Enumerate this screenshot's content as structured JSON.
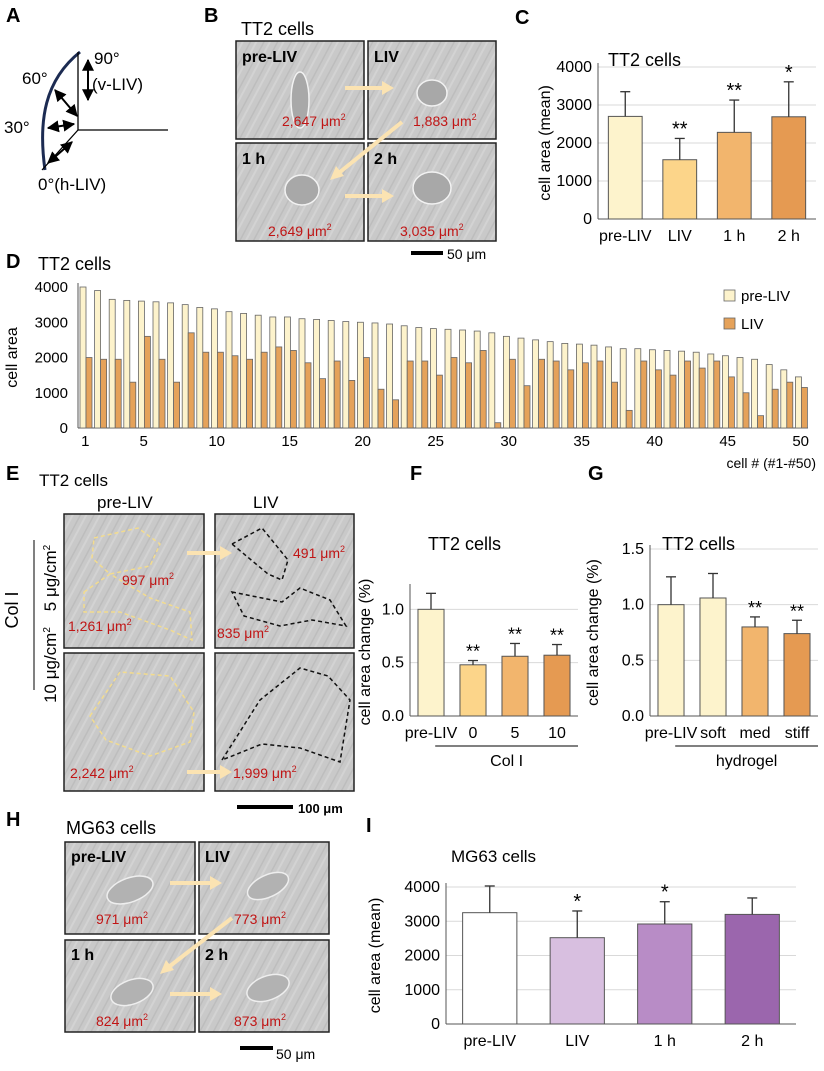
{
  "panel_letters": {
    "A": "A",
    "B": "B",
    "C": "C",
    "D": "D",
    "E": "E",
    "F": "F",
    "G": "G",
    "H": "H",
    "I": "I"
  },
  "panel_a": {
    "angle_90": "90°",
    "angle_vliv": "(v-LIV)",
    "angle_60": "60°",
    "angle_30": "30°",
    "angle_0": "0°(h-LIV)"
  },
  "panel_b": {
    "title": "TT2 cells",
    "scale": "50 μm",
    "tiles": [
      {
        "label": "pre-LIV",
        "area": "2,647 μm",
        "sup": "2"
      },
      {
        "label": "LIV",
        "area": "1,883 μm",
        "sup": "2"
      },
      {
        "label": "1 h",
        "area": "2,649 μm",
        "sup": "2"
      },
      {
        "label": "2 h",
        "area": "3,035 μm",
        "sup": "2"
      }
    ]
  },
  "panel_e": {
    "title": "TT2 cells",
    "col_pre": "pre-LIV",
    "col_liv": "LIV",
    "side": "Col I",
    "row1": "5 μg/cm",
    "row1_sup": "2",
    "row2": "10 μg/cm",
    "row2_sup": "2",
    "scale": "100 μm",
    "areas": [
      {
        "v": "997 μm",
        "s": "2"
      },
      {
        "v": "1,261 μm",
        "s": "2"
      },
      {
        "v": "491 μm",
        "s": "2"
      },
      {
        "v": "835 μm",
        "s": "2"
      },
      {
        "v": "2,242 μm",
        "s": "2"
      },
      {
        "v": "1,999 μm",
        "s": "2"
      }
    ]
  },
  "panel_h": {
    "title": "MG63 cells",
    "scale": "50 μm",
    "tiles": [
      {
        "label": "pre-LIV",
        "area": "971 μm",
        "sup": "2"
      },
      {
        "label": "LIV",
        "area": "773 μm",
        "sup": "2"
      },
      {
        "label": "1 h",
        "area": "824 μm",
        "sup": "2"
      },
      {
        "label": "2 h",
        "area": "873 μm",
        "sup": "2"
      }
    ]
  },
  "colors": {
    "pre": "#fdf3cc",
    "liv_d": "#e5a25a",
    "c1": "#fcd58a",
    "c2": "#f2b56d",
    "c3": "#e59a52",
    "i1": "#ffffff",
    "i2": "#d8bfe0",
    "i3": "#b88cc6",
    "i4": "#9b66ad",
    "red": "#c01515",
    "arrow": "#fbe3b2"
  },
  "chart_data": [
    {
      "id": "C",
      "type": "bar",
      "title": "TT2 cells",
      "xlabel": "",
      "ylabel": "cell area (mean)",
      "categories": [
        "pre-LIV",
        "LIV",
        "1 h",
        "2 h"
      ],
      "values": [
        2700,
        1560,
        2280,
        2690
      ],
      "errors": [
        650,
        560,
        850,
        920
      ],
      "significance": [
        "",
        "**",
        "**",
        "*"
      ],
      "ylim": [
        0,
        4000
      ],
      "yticks": [
        "0",
        "1000",
        "2000",
        "3000",
        "4000"
      ]
    },
    {
      "id": "D",
      "type": "bar",
      "title": "TT2 cells",
      "xlabel": "cell # (#1-#50)",
      "ylabel": "cell area",
      "ylim": [
        0,
        4000
      ],
      "yticks": [
        "0",
        "1000",
        "2000",
        "3000",
        "4000"
      ],
      "xticks": [
        "1",
        "5",
        "10",
        "15",
        "20",
        "25",
        "30",
        "35",
        "40",
        "45",
        "50"
      ],
      "legend": [
        "pre-LIV",
        "LIV"
      ],
      "legend_position": "top-right",
      "series": [
        {
          "name": "pre-LIV",
          "values": [
            4000,
            3900,
            3650,
            3620,
            3600,
            3580,
            3550,
            3500,
            3420,
            3380,
            3300,
            3250,
            3200,
            3150,
            3150,
            3100,
            3080,
            3050,
            3020,
            3000,
            2980,
            2950,
            2900,
            2850,
            2820,
            2800,
            2780,
            2750,
            2700,
            2600,
            2550,
            2500,
            2450,
            2400,
            2380,
            2350,
            2300,
            2250,
            2250,
            2220,
            2200,
            2180,
            2150,
            2100,
            2050,
            2000,
            1950,
            1800,
            1650,
            1450
          ]
        },
        {
          "name": "LIV",
          "values": [
            2000,
            1950,
            1950,
            1300,
            2600,
            1950,
            1300,
            2700,
            2150,
            2150,
            2050,
            1950,
            2150,
            2300,
            2200,
            1850,
            1400,
            1900,
            1350,
            2000,
            1100,
            800,
            1900,
            1900,
            1500,
            2000,
            1850,
            2200,
            150,
            1950,
            1200,
            1950,
            1900,
            1650,
            1850,
            1900,
            1300,
            500,
            1900,
            1650,
            1500,
            1900,
            1700,
            1900,
            1450,
            1000,
            350,
            1100,
            1300,
            1150
          ]
        }
      ]
    },
    {
      "id": "F",
      "type": "bar",
      "title": "TT2 cells",
      "ylabel": "cell area change  (%)",
      "xlabel": "Col I",
      "categories": [
        "pre-LIV",
        "0",
        "5",
        "10"
      ],
      "values": [
        1.0,
        0.48,
        0.56,
        0.57
      ],
      "errors": [
        0.15,
        0.04,
        0.12,
        0.1
      ],
      "significance": [
        "",
        "**",
        "**",
        "**"
      ],
      "ylim": [
        0,
        1.2
      ],
      "yticks": [
        "0.0",
        "0.5",
        "1.0"
      ]
    },
    {
      "id": "G",
      "type": "bar",
      "title": "TT2 cells",
      "ylabel": "cell area change  (%)",
      "xlabel": "hydrogel",
      "categories": [
        "pre-LIV",
        "soft",
        "med",
        "stiff"
      ],
      "values": [
        1.0,
        1.06,
        0.8,
        0.74
      ],
      "errors": [
        0.25,
        0.22,
        0.09,
        0.12
      ],
      "significance": [
        "",
        "",
        "**",
        "**"
      ],
      "ylim": [
        0,
        1.5
      ],
      "yticks": [
        "0.0",
        "0.5",
        "1.0",
        "1.5"
      ]
    },
    {
      "id": "I",
      "type": "bar",
      "title": "MG63 cells",
      "ylabel": "cell area (mean)",
      "xlabel": "",
      "categories": [
        "pre-LIV",
        "LIV",
        "1 h",
        "2 h"
      ],
      "values": [
        3250,
        2520,
        2920,
        3200
      ],
      "errors": [
        780,
        780,
        650,
        480
      ],
      "significance": [
        "",
        "*",
        "*",
        ""
      ],
      "ylim": [
        0,
        4000
      ],
      "yticks": [
        "0",
        "1000",
        "2000",
        "3000",
        "4000"
      ]
    }
  ]
}
